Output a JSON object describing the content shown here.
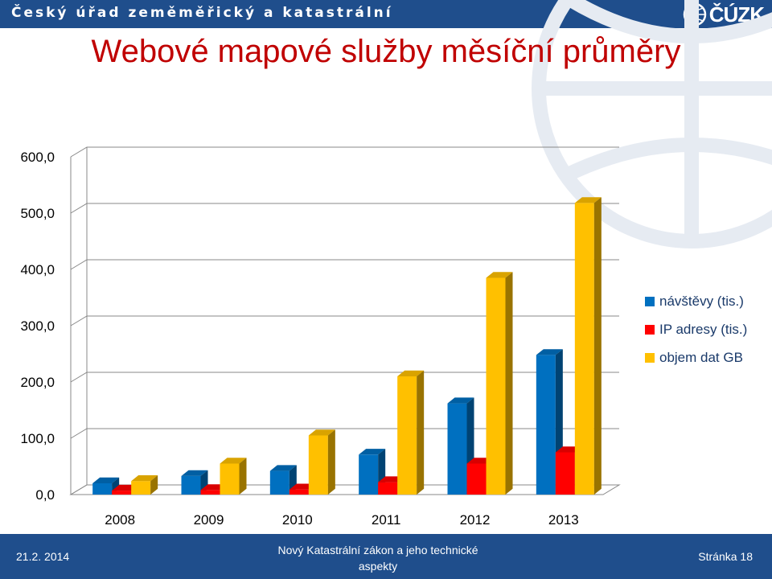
{
  "header": {
    "org_name": "Český úřad zeměměřický a katastrální",
    "logo_text": "ČÚZK"
  },
  "slide": {
    "title": "Webové mapové služby měsíční průměry"
  },
  "footer": {
    "date": "21.2. 2014",
    "center_text": "Nový Katastrální zákon a jeho technické aspekty",
    "page": "Stránka 18"
  },
  "colors": {
    "header_bg": "#1f4e8c",
    "title": "#c00000",
    "series_blue": "#0070c0",
    "series_red": "#ff0000",
    "series_gold": "#ffc000"
  },
  "chart_data": {
    "type": "bar",
    "title": "Webové mapové služby měsíční průměry",
    "xlabel": "",
    "ylabel": "",
    "categories": [
      "2008",
      "2009",
      "2010",
      "2011",
      "2012",
      "2013"
    ],
    "series": [
      {
        "name": "návštěvy (tis.)",
        "values": [
          20,
          33,
          42,
          71,
          162,
          248
        ],
        "color": "#0070c0"
      },
      {
        "name": "IP adresy (tis.)",
        "values": [
          7,
          8,
          9,
          22,
          55,
          75
        ],
        "color": "#ff0000"
      },
      {
        "name": "objem dat GB",
        "values": [
          24,
          55,
          105,
          210,
          385,
          518
        ],
        "color": "#ffc000"
      }
    ],
    "ylim": [
      0,
      600
    ],
    "yticks": [
      "0,0",
      "100,0",
      "200,0",
      "300,0",
      "400,0",
      "500,0",
      "600,0"
    ],
    "grid": true,
    "legend_position": "right",
    "style": "3d-clustered-column"
  }
}
